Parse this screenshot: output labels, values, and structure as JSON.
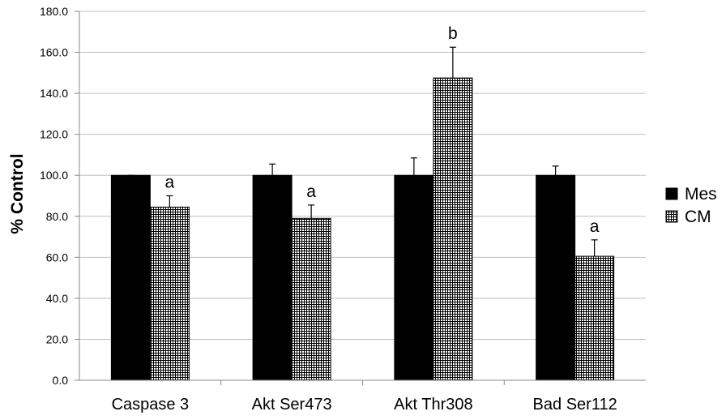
{
  "chart_data": {
    "type": "bar",
    "title": "",
    "xlabel": "",
    "ylabel": "% Control",
    "ylim": [
      0,
      180
    ],
    "ytick_step": 20,
    "ytick_labels": [
      "0.0",
      "20.0",
      "40.0",
      "60.0",
      "80.0",
      "100.0",
      "120.0",
      "140.0",
      "160.0",
      "180.0"
    ],
    "grid": true,
    "legend_position": "right",
    "categories": [
      "Caspase 3",
      "Akt Ser473",
      "Akt Thr308",
      "Bad Ser112"
    ],
    "series": [
      {
        "name": "Mes",
        "fill": "solid",
        "color": "#000000",
        "values": [
          100,
          100,
          100,
          100
        ],
        "errors": [
          0,
          5.5,
          8.5,
          4.5
        ],
        "annotations": [
          "",
          "",
          "",
          ""
        ]
      },
      {
        "name": "CM",
        "fill": "crosshatch",
        "color": "#000000",
        "values": [
          84.5,
          79,
          147.5,
          60.5
        ],
        "errors": [
          5.5,
          6.5,
          15,
          8
        ],
        "annotations": [
          "a",
          "a",
          "b",
          "a"
        ]
      }
    ]
  }
}
